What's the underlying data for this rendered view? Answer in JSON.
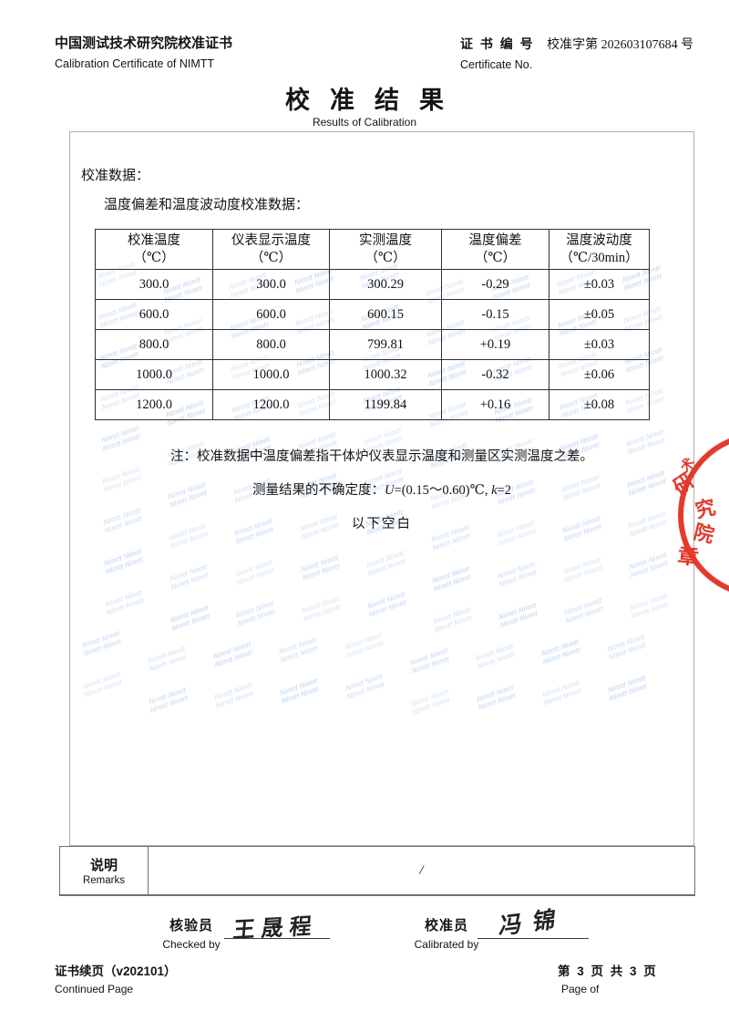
{
  "header": {
    "org_cn": "中国测试技术研究院校准证书",
    "org_en": "Calibration Certificate of NIMTT",
    "cert_label_cn": "证 书 编 号",
    "cert_value": "校准字第 202603107684 号",
    "cert_label_en": "Certificate No.",
    "title_cn": "校准结果",
    "title_en": "Results of Calibration"
  },
  "content": {
    "section_label": "校准数据：",
    "caption": "温度偏差和温度波动度校准数据：",
    "note": "注：校准数据中温度偏差指干体炉仪表显示温度和测量区实测温度之差。",
    "uncertainty": {
      "prefix": "测量结果的不确定度：",
      "u": "U",
      "mid": "=(0.15～0.60)℃, ",
      "k": "k",
      "suffix": "=2"
    },
    "blank_note": "以下空白"
  },
  "table": {
    "headers": [
      [
        "校准温度",
        "（℃）"
      ],
      [
        "仪表显示温度",
        "（℃）"
      ],
      [
        "实测温度",
        "（℃）"
      ],
      [
        "温度偏差",
        "（℃）"
      ],
      [
        "温度波动度",
        "（℃/30min）"
      ]
    ],
    "rows": [
      [
        "300.0",
        "300.0",
        "300.29",
        "-0.29",
        "±0.03"
      ],
      [
        "600.0",
        "600.0",
        "600.15",
        "-0.15",
        "±0.05"
      ],
      [
        "800.0",
        "800.0",
        "799.81",
        "+0.19",
        "±0.03"
      ],
      [
        "1000.0",
        "1000.0",
        "1000.32",
        "-0.32",
        "±0.06"
      ],
      [
        "1200.0",
        "1200.0",
        "1199.84",
        "+0.16",
        "±0.08"
      ]
    ]
  },
  "remarks": {
    "label_cn": "说明",
    "label_en": "Remarks",
    "value": "/"
  },
  "signatures": {
    "checked": {
      "label_cn": "核验员",
      "label_en": "Checked by",
      "name": "王晟程"
    },
    "calibrated": {
      "label_cn": "校准员",
      "label_en": "Calibrated by",
      "name": "冯锦"
    }
  },
  "footer": {
    "left_cn": "证书续页（v202101）",
    "left_en": "Continued Page",
    "right_cn": "第 3 页 共 3 页",
    "right_en": "Page of"
  },
  "watermark": {
    "text": "Nimtt",
    "color": "#cbdcf2"
  },
  "stamp": {
    "color": "#e23b2e",
    "partial_char": "术",
    "chars": [
      "研",
      "究",
      "院",
      "章"
    ]
  }
}
